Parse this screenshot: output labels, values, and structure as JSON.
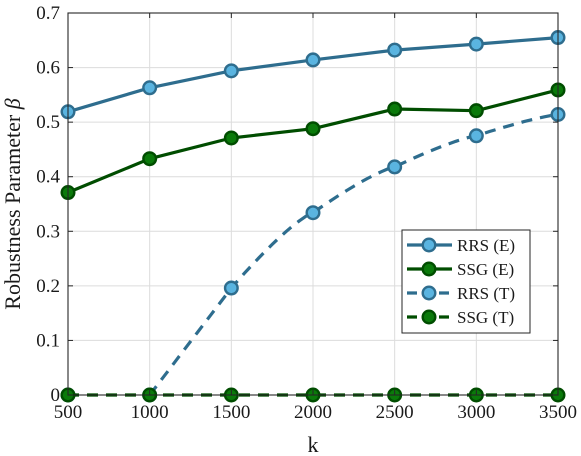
{
  "chart_data": {
    "type": "line",
    "xlabel": "k",
    "ylabel": "Robustness Parameter",
    "ylabel_symbol": "β",
    "xlim": [
      500,
      3500
    ],
    "ylim": [
      0,
      0.7
    ],
    "xticks": [
      500,
      1000,
      1500,
      2000,
      2500,
      3000,
      3500
    ],
    "yticks": [
      0,
      0.1,
      0.2,
      0.3,
      0.4,
      0.5,
      0.6,
      0.7
    ],
    "grid": true,
    "legend_position": "center-right",
    "x": [
      500,
      1000,
      1500,
      2000,
      2500,
      3000,
      3500
    ],
    "series": [
      {
        "name": "RRS (E)",
        "values": [
          0.519,
          0.563,
          0.594,
          0.614,
          0.632,
          0.643,
          0.655
        ],
        "color": "#2e6d8e",
        "marker_fill": "#5ab4e0",
        "dash": "solid"
      },
      {
        "name": "SSG (E)",
        "values": [
          0.371,
          0.433,
          0.471,
          0.488,
          0.524,
          0.521,
          0.559
        ],
        "color": "#004d00",
        "marker_fill": "#0a7a0a",
        "dash": "solid"
      },
      {
        "name": "RRS (T)",
        "values": [
          0,
          0,
          0.196,
          0.334,
          0.418,
          0.475,
          0.514
        ],
        "curve_from": 1000,
        "color": "#2e6d8e",
        "marker_fill": "#5ab4e0",
        "dash": "dashed"
      },
      {
        "name": "SSG (T)",
        "values": [
          0,
          0,
          0,
          0,
          0,
          0,
          0
        ],
        "color": "#004d00",
        "marker_fill": "#0a7a0a",
        "dash": "dashed"
      }
    ]
  }
}
